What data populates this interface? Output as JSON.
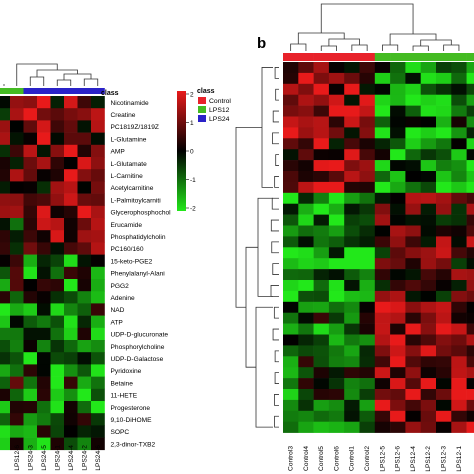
{
  "panel_b_label": "b",
  "legend": {
    "title": "class",
    "entries": [
      {
        "name": "Control",
        "color": "#e8222a"
      },
      {
        "name": "LPS12",
        "color": "#44bb22"
      },
      {
        "name": "LPS24",
        "color": "#2a22c8"
      }
    ],
    "scale_ticks": [
      "2",
      "1",
      "0",
      "-1",
      "-2"
    ]
  },
  "chart_data": [
    {
      "type": "heatmap",
      "panel": "a",
      "class_label": "class",
      "rows": [
        "Nicotinamide",
        "Creatine",
        "PC1819Z/1819Z",
        "L-Glutamine",
        "AMP",
        "L-Glutamate",
        "L-Carnitine",
        "Acetylcarnitine",
        "L-Palmitoylcarniti",
        "Glycerophosphochol",
        "Erucamide",
        "Phosphatidylcholin",
        "PC160/160",
        "15-keto-PGE2",
        "Phenylalanyl-Alani",
        "PGG2",
        "Adenine",
        "NAD",
        "ATP",
        "UDP-D-glucuronate",
        "Phosphorylcholine",
        "UDP-D-Galactose",
        "Pyridoxine",
        "Betaine",
        "11-HETE",
        "Progesterone",
        "9,10-DiHOME",
        "SOPC",
        "2,3-dinor-TXB2"
      ],
      "columns": [
        "LPS12-6",
        "LPS24-3",
        "LPS24-5",
        "LPS24-1",
        "LPS24-4",
        "LPS24-2",
        "LPS24-6"
      ],
      "column_class": [
        "LPS12",
        "LPS24",
        "LPS24",
        "LPS24",
        "LPS24",
        "LPS24",
        "LPS24"
      ],
      "color_scale": {
        "min": -2,
        "max": 2,
        "low": "#22e81a",
        "mid": "#000000",
        "high": "#e81a1a"
      }
    },
    {
      "type": "heatmap",
      "panel": "b",
      "columns": [
        "Control3",
        "Control4",
        "Control5",
        "Control6",
        "Control1",
        "Control2",
        "LPS12-5",
        "LPS12-6",
        "LPS12-4",
        "LPS12-2",
        "LPS12-3",
        "LPS12-1"
      ],
      "column_class": [
        "Control",
        "Control",
        "Control",
        "Control",
        "Control",
        "Control",
        "LPS12",
        "LPS12",
        "LPS12",
        "LPS12",
        "LPS12",
        "LPS12"
      ],
      "color_scale": {
        "min": -2,
        "max": 2,
        "low": "#22e81a",
        "mid": "#000000",
        "high": "#e81a1a"
      }
    }
  ]
}
